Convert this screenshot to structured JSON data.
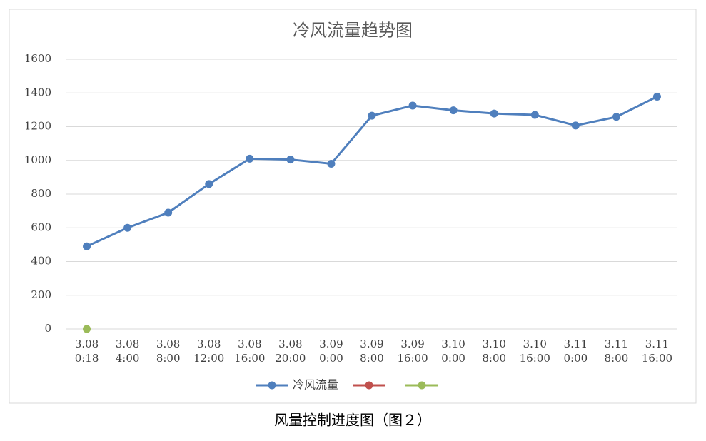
{
  "chart_data": {
    "type": "line",
    "title": "冷风流量趋势图",
    "categories": [
      "3.08 0:18",
      "3.08 4:00",
      "3.08 8:00",
      "3.08 12:00",
      "3.08 16:00",
      "3.08 20:00",
      "3.09 0:00",
      "3.09 8:00",
      "3.09 16:00",
      "3.10 0:00",
      "3.10 8:00",
      "3.10 16:00",
      "3.11 0:00",
      "3.11 8:00",
      "3.11 16:00"
    ],
    "series": [
      {
        "name": "冷风流量",
        "color": "#4f7fbd",
        "values": [
          490,
          600,
          690,
          860,
          1010,
          1005,
          980,
          1265,
          1325,
          1297,
          1278,
          1270,
          1207,
          1258,
          1378
        ]
      },
      {
        "color": "#c0504d",
        "values": [
          null,
          null,
          null,
          null,
          null,
          null,
          null,
          null,
          null,
          null,
          null,
          null,
          null,
          null,
          null
        ]
      },
      {
        "color": "#9bbb59",
        "values": [
          0,
          null,
          null,
          null,
          null,
          null,
          null,
          null,
          null,
          null,
          null,
          null,
          null,
          null,
          null
        ]
      }
    ],
    "ylim": [
      0,
      1600
    ],
    "yticks": [
      0,
      200,
      400,
      600,
      800,
      1000,
      1200,
      1400,
      1600
    ],
    "grid": true,
    "legend": "bottom",
    "caption": "风量控制进度图（图２）"
  }
}
